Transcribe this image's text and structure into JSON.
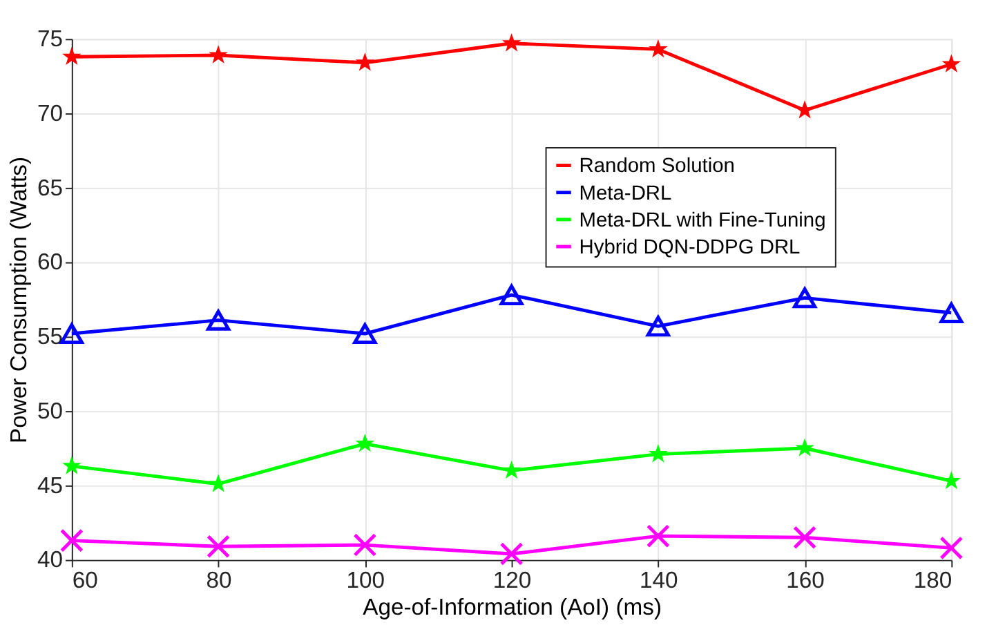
{
  "chart_data": {
    "type": "line",
    "xlabel": "Age-of-Information (AoI) (ms)",
    "ylabel": "Power Consumption (Watts)",
    "x": [
      60,
      80,
      100,
      120,
      140,
      160,
      180
    ],
    "series": [
      {
        "name": "Random Solution",
        "color": "#ff0000",
        "marker": "star",
        "values": [
          73.8,
          73.9,
          73.4,
          74.7,
          74.3,
          70.2,
          73.3
        ]
      },
      {
        "name": "Meta-DRL",
        "color": "#0000ff",
        "marker": "triangle",
        "values": [
          55.2,
          56.1,
          55.2,
          57.8,
          55.7,
          57.6,
          56.6
        ]
      },
      {
        "name": "Meta-DRL with Fine-Tuning",
        "color": "#00ff00",
        "marker": "star",
        "values": [
          46.3,
          45.1,
          47.8,
          46.0,
          47.1,
          47.5,
          45.3
        ]
      },
      {
        "name": "Hybrid DQN-DDPG DRL",
        "color": "#ff00ff",
        "marker": "cross",
        "values": [
          41.3,
          40.9,
          41.0,
          40.4,
          41.6,
          41.5,
          40.8
        ]
      }
    ],
    "xlim": [
      60,
      180
    ],
    "xticks": [
      60,
      80,
      100,
      120,
      140,
      160,
      180
    ],
    "ylim": [
      40,
      75
    ],
    "yticks": [
      40,
      45,
      50,
      55,
      60,
      65,
      70,
      75
    ],
    "grid": true,
    "legend": "top right",
    "line_style": "solid"
  }
}
